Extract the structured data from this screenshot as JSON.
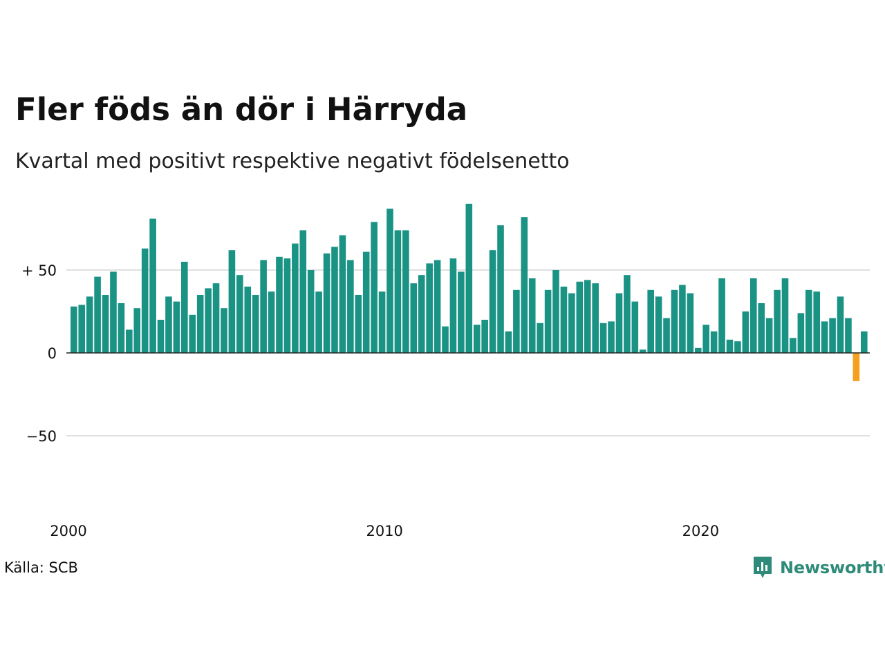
{
  "title": "Fler föds än dör i Härryda",
  "subtitle": "Kvartal med positivt respektive negativt födelsenetto",
  "source": "Källa: SCB",
  "brand": {
    "name": "Newsworthy",
    "logo_icon": "newsworthy-logo-icon"
  },
  "colors": {
    "positive": "#1a9385",
    "negative": "#f5a01e",
    "grid": "#e0e0e0",
    "zero_line": "#222222",
    "brand": "#2e8b79"
  },
  "chart_data": {
    "type": "bar",
    "title": "Fler föds än dör i Härryda",
    "subtitle": "Kvartal med positivt respektive negativt födelsenetto",
    "start_period": "2000 Q1",
    "frequency": "quarterly",
    "values": [
      28,
      29,
      34,
      46,
      35,
      49,
      30,
      14,
      27,
      63,
      81,
      20,
      34,
      31,
      55,
      23,
      35,
      39,
      42,
      27,
      62,
      47,
      40,
      35,
      56,
      37,
      58,
      57,
      66,
      74,
      50,
      37,
      60,
      64,
      71,
      56,
      35,
      61,
      79,
      37,
      87,
      74,
      74,
      42,
      47,
      54,
      56,
      16,
      57,
      49,
      90,
      17,
      20,
      62,
      77,
      13,
      38,
      82,
      45,
      18,
      38,
      50,
      40,
      36,
      43,
      44,
      42,
      18,
      19,
      36,
      47,
      31,
      2,
      38,
      34,
      21,
      38,
      41,
      36,
      3,
      17,
      13,
      45,
      8,
      7,
      25,
      45,
      30,
      21,
      38,
      45,
      9,
      24,
      38,
      37,
      19,
      21,
      34,
      21,
      -17,
      13
    ],
    "ylim": [
      -90,
      95
    ],
    "yticks": [
      50,
      0,
      -50
    ],
    "ytick_labels": [
      "+ 50",
      "0",
      "−50"
    ],
    "xticks": [
      "2000",
      "2010",
      "2020"
    ],
    "grid": true,
    "legend": "none"
  }
}
